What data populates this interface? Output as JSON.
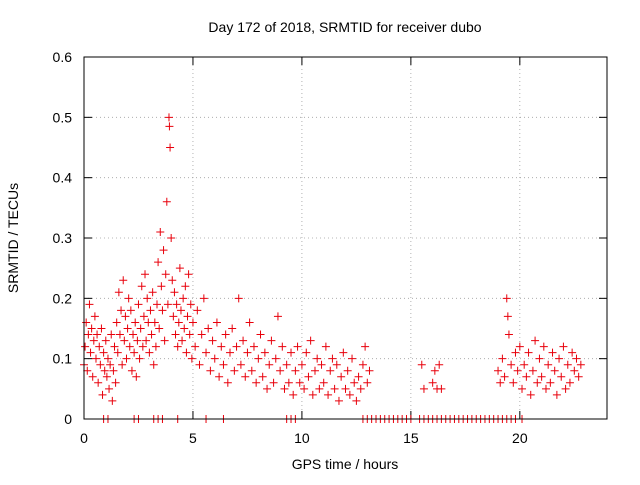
{
  "chart_data": {
    "type": "scatter",
    "title": "Day 172 of 2018, SRMTID for receiver dubo",
    "xlabel": "GPS time / hours",
    "ylabel": "SRMTID / TECUs",
    "xlim": [
      0,
      24
    ],
    "ylim": [
      0,
      0.6
    ],
    "xticks": [
      0,
      5,
      10,
      15,
      20
    ],
    "xtick_labels": [
      "0",
      "5",
      "10",
      "15",
      "20"
    ],
    "yticks": [
      0,
      0.1,
      0.2,
      0.3,
      0.4,
      0.5,
      0.6
    ],
    "ytick_labels": [
      "0",
      "0.1",
      "0.2",
      "0.3",
      "0.4",
      "0.5",
      "0.6"
    ],
    "grid": true,
    "marker": "+",
    "series": [
      {
        "name": "SRMTID",
        "color": "#e8000b",
        "points": [
          [
            0.0,
            0.09
          ],
          [
            0.05,
            0.12
          ],
          [
            0.1,
            0.16
          ],
          [
            0.15,
            0.08
          ],
          [
            0.2,
            0.14
          ],
          [
            0.25,
            0.19
          ],
          [
            0.3,
            0.11
          ],
          [
            0.35,
            0.15
          ],
          [
            0.4,
            0.07
          ],
          [
            0.45,
            0.13
          ],
          [
            0.5,
            0.17
          ],
          [
            0.55,
            0.1
          ],
          [
            0.6,
            0.14
          ],
          [
            0.65,
            0.06
          ],
          [
            0.7,
            0.12
          ],
          [
            0.75,
            0.09
          ],
          [
            0.8,
            0.15
          ],
          [
            0.85,
            0.04
          ],
          [
            0.9,
            0.11
          ],
          [
            0.95,
            0.08
          ],
          [
            1.0,
            0.13
          ],
          [
            1.05,
            0.07
          ],
          [
            1.1,
            0.1
          ],
          [
            1.15,
            0.05
          ],
          [
            1.2,
            0.09
          ],
          [
            1.25,
            0.14
          ],
          [
            1.3,
            0.03
          ],
          [
            1.35,
            0.08
          ],
          [
            1.4,
            0.12
          ],
          [
            1.45,
            0.06
          ],
          [
            1.5,
            0.16
          ],
          [
            1.55,
            0.11
          ],
          [
            1.6,
            0.21
          ],
          [
            1.65,
            0.14
          ],
          [
            1.7,
            0.18
          ],
          [
            1.75,
            0.09
          ],
          [
            1.8,
            0.23
          ],
          [
            1.85,
            0.13
          ],
          [
            1.9,
            0.17
          ],
          [
            1.95,
            0.1
          ],
          [
            2.0,
            0.15
          ],
          [
            2.05,
            0.2
          ],
          [
            2.1,
            0.12
          ],
          [
            2.15,
            0.18
          ],
          [
            2.2,
            0.08
          ],
          [
            2.25,
            0.14
          ],
          [
            2.3,
            0.11
          ],
          [
            2.35,
            0.16
          ],
          [
            2.4,
            0.07
          ],
          [
            2.45,
            0.13
          ],
          [
            2.5,
            0.19
          ],
          [
            2.55,
            0.1
          ],
          [
            2.6,
            0.15
          ],
          [
            2.65,
            0.22
          ],
          [
            2.7,
            0.12
          ],
          [
            2.75,
            0.17
          ],
          [
            2.8,
            0.24
          ],
          [
            2.85,
            0.13
          ],
          [
            2.9,
            0.2
          ],
          [
            2.95,
            0.16
          ],
          [
            3.0,
            0.11
          ],
          [
            3.05,
            0.18
          ],
          [
            3.1,
            0.14
          ],
          [
            3.15,
            0.21
          ],
          [
            3.2,
            0.09
          ],
          [
            3.25,
            0.16
          ],
          [
            3.3,
            0.12
          ],
          [
            3.35,
            0.19
          ],
          [
            3.4,
            0.26
          ],
          [
            3.45,
            0.15
          ],
          [
            3.5,
            0.31
          ],
          [
            3.55,
            0.22
          ],
          [
            3.6,
            0.18
          ],
          [
            3.65,
            0.28
          ],
          [
            3.7,
            0.13
          ],
          [
            3.75,
            0.24
          ],
          [
            3.8,
            0.36
          ],
          [
            3.85,
            0.19
          ],
          [
            3.9,
            0.5
          ],
          [
            3.95,
            0.45
          ],
          [
            3.92,
            0.485
          ],
          [
            4.0,
            0.3
          ],
          [
            4.05,
            0.23
          ],
          [
            4.1,
            0.17
          ],
          [
            4.15,
            0.21
          ],
          [
            4.2,
            0.14
          ],
          [
            4.25,
            0.19
          ],
          [
            4.3,
            0.12
          ],
          [
            4.35,
            0.16
          ],
          [
            4.4,
            0.25
          ],
          [
            4.45,
            0.18
          ],
          [
            4.5,
            0.13
          ],
          [
            4.55,
            0.2
          ],
          [
            4.6,
            0.15
          ],
          [
            4.65,
            0.22
          ],
          [
            4.7,
            0.11
          ],
          [
            4.75,
            0.17
          ],
          [
            4.8,
            0.24
          ],
          [
            4.85,
            0.14
          ],
          [
            4.9,
            0.19
          ],
          [
            4.95,
            0.1
          ],
          [
            5.0,
            0.16
          ],
          [
            5.1,
            0.12
          ],
          [
            5.2,
            0.18
          ],
          [
            5.3,
            0.09
          ],
          [
            5.4,
            0.14
          ],
          [
            5.5,
            0.2
          ],
          [
            5.6,
            0.11
          ],
          [
            5.7,
            0.15
          ],
          [
            5.8,
            0.08
          ],
          [
            5.9,
            0.13
          ],
          [
            6.0,
            0.1
          ],
          [
            6.1,
            0.16
          ],
          [
            6.2,
            0.07
          ],
          [
            6.3,
            0.12
          ],
          [
            6.4,
            0.09
          ],
          [
            6.5,
            0.14
          ],
          [
            6.6,
            0.06
          ],
          [
            6.7,
            0.11
          ],
          [
            6.8,
            0.15
          ],
          [
            6.9,
            0.08
          ],
          [
            7.0,
            0.12
          ],
          [
            7.1,
            0.2
          ],
          [
            7.2,
            0.09
          ],
          [
            7.3,
            0.13
          ],
          [
            7.4,
            0.07
          ],
          [
            7.5,
            0.11
          ],
          [
            7.6,
            0.16
          ],
          [
            7.7,
            0.08
          ],
          [
            7.8,
            0.12
          ],
          [
            7.9,
            0.06
          ],
          [
            8.0,
            0.1
          ],
          [
            8.1,
            0.14
          ],
          [
            8.2,
            0.07
          ],
          [
            8.3,
            0.11
          ],
          [
            8.4,
            0.05
          ],
          [
            8.5,
            0.09
          ],
          [
            8.6,
            0.13
          ],
          [
            8.7,
            0.06
          ],
          [
            8.8,
            0.1
          ],
          [
            8.9,
            0.17
          ],
          [
            9.0,
            0.08
          ],
          [
            9.1,
            0.12
          ],
          [
            9.2,
            0.05
          ],
          [
            9.3,
            0.09
          ],
          [
            9.4,
            0.06
          ],
          [
            9.5,
            0.11
          ],
          [
            9.6,
            0.04
          ],
          [
            9.7,
            0.08
          ],
          [
            9.8,
            0.12
          ],
          [
            9.9,
            0.06
          ],
          [
            10.0,
            0.09
          ],
          [
            10.1,
            0.05
          ],
          [
            10.2,
            0.11
          ],
          [
            10.3,
            0.07
          ],
          [
            10.4,
            0.13
          ],
          [
            10.5,
            0.04
          ],
          [
            10.6,
            0.08
          ],
          [
            10.7,
            0.1
          ],
          [
            10.8,
            0.05
          ],
          [
            10.9,
            0.09
          ],
          [
            11.0,
            0.06
          ],
          [
            11.1,
            0.12
          ],
          [
            11.2,
            0.04
          ],
          [
            11.3,
            0.08
          ],
          [
            11.4,
            0.1
          ],
          [
            11.5,
            0.05
          ],
          [
            11.6,
            0.09
          ],
          [
            11.7,
            0.03
          ],
          [
            11.8,
            0.07
          ],
          [
            11.9,
            0.11
          ],
          [
            12.0,
            0.05
          ],
          [
            12.1,
            0.08
          ],
          [
            12.2,
            0.04
          ],
          [
            12.3,
            0.1
          ],
          [
            12.4,
            0.06
          ],
          [
            12.5,
            0.03
          ],
          [
            12.6,
            0.07
          ],
          [
            12.7,
            0.05
          ],
          [
            12.8,
            0.09
          ],
          [
            12.9,
            0.12
          ],
          [
            13.0,
            0.06
          ],
          [
            13.1,
            0.08
          ],
          [
            15.5,
            0.09
          ],
          [
            15.6,
            0.05
          ],
          [
            16.0,
            0.06
          ],
          [
            16.1,
            0.08
          ],
          [
            16.2,
            0.05
          ],
          [
            16.3,
            0.09
          ],
          [
            16.4,
            0.05
          ],
          [
            19.0,
            0.08
          ],
          [
            19.1,
            0.06
          ],
          [
            19.2,
            0.1
          ],
          [
            19.3,
            0.07
          ],
          [
            19.4,
            0.2
          ],
          [
            19.45,
            0.17
          ],
          [
            19.5,
            0.14
          ],
          [
            19.6,
            0.09
          ],
          [
            19.7,
            0.06
          ],
          [
            19.8,
            0.11
          ],
          [
            19.9,
            0.08
          ],
          [
            20.0,
            0.12
          ],
          [
            20.1,
            0.05
          ],
          [
            20.2,
            0.09
          ],
          [
            20.3,
            0.07
          ],
          [
            20.4,
            0.11
          ],
          [
            20.5,
            0.04
          ],
          [
            20.6,
            0.08
          ],
          [
            20.7,
            0.13
          ],
          [
            20.8,
            0.06
          ],
          [
            20.9,
            0.1
          ],
          [
            21.0,
            0.07
          ],
          [
            21.1,
            0.12
          ],
          [
            21.2,
            0.05
          ],
          [
            21.3,
            0.09
          ],
          [
            21.4,
            0.06
          ],
          [
            21.5,
            0.11
          ],
          [
            21.6,
            0.08
          ],
          [
            21.7,
            0.04
          ],
          [
            21.8,
            0.1
          ],
          [
            21.9,
            0.07
          ],
          [
            22.0,
            0.12
          ],
          [
            22.1,
            0.05
          ],
          [
            22.2,
            0.09
          ],
          [
            22.3,
            0.06
          ],
          [
            22.4,
            0.11
          ],
          [
            22.5,
            0.08
          ],
          [
            22.6,
            0.1
          ],
          [
            22.7,
            0.07
          ],
          [
            22.8,
            0.09
          ],
          [
            0.9,
            0.0
          ],
          [
            1.1,
            0.0
          ],
          [
            2.3,
            0.0
          ],
          [
            2.5,
            0.0
          ],
          [
            3.2,
            0.0
          ],
          [
            3.4,
            0.0
          ],
          [
            3.6,
            0.0
          ],
          [
            4.3,
            0.0
          ],
          [
            5.6,
            0.0
          ],
          [
            6.4,
            0.0
          ],
          [
            9.3,
            0.0
          ],
          [
            9.5,
            0.0
          ],
          [
            9.7,
            0.0
          ],
          [
            12.8,
            0.0
          ],
          [
            13.0,
            0.0
          ],
          [
            13.2,
            0.0
          ],
          [
            13.4,
            0.0
          ],
          [
            13.6,
            0.0
          ],
          [
            13.8,
            0.0
          ],
          [
            14.0,
            0.0
          ],
          [
            14.2,
            0.0
          ],
          [
            14.4,
            0.0
          ],
          [
            14.6,
            0.0
          ],
          [
            14.8,
            0.0
          ],
          [
            15.0,
            0.0
          ],
          [
            15.4,
            0.0
          ],
          [
            15.6,
            0.0
          ],
          [
            15.8,
            0.0
          ],
          [
            16.0,
            0.0
          ],
          [
            16.2,
            0.0
          ],
          [
            16.4,
            0.0
          ],
          [
            16.6,
            0.0
          ],
          [
            16.8,
            0.0
          ],
          [
            17.0,
            0.0
          ],
          [
            17.2,
            0.0
          ],
          [
            17.4,
            0.0
          ],
          [
            17.6,
            0.0
          ],
          [
            17.8,
            0.0
          ],
          [
            18.0,
            0.0
          ],
          [
            18.2,
            0.0
          ],
          [
            18.4,
            0.0
          ],
          [
            18.6,
            0.0
          ],
          [
            18.8,
            0.0
          ],
          [
            19.0,
            0.0
          ],
          [
            19.2,
            0.0
          ],
          [
            19.4,
            0.0
          ],
          [
            19.6,
            0.0
          ],
          [
            19.8,
            0.0
          ],
          [
            20.1,
            0.0
          ]
        ]
      }
    ]
  }
}
